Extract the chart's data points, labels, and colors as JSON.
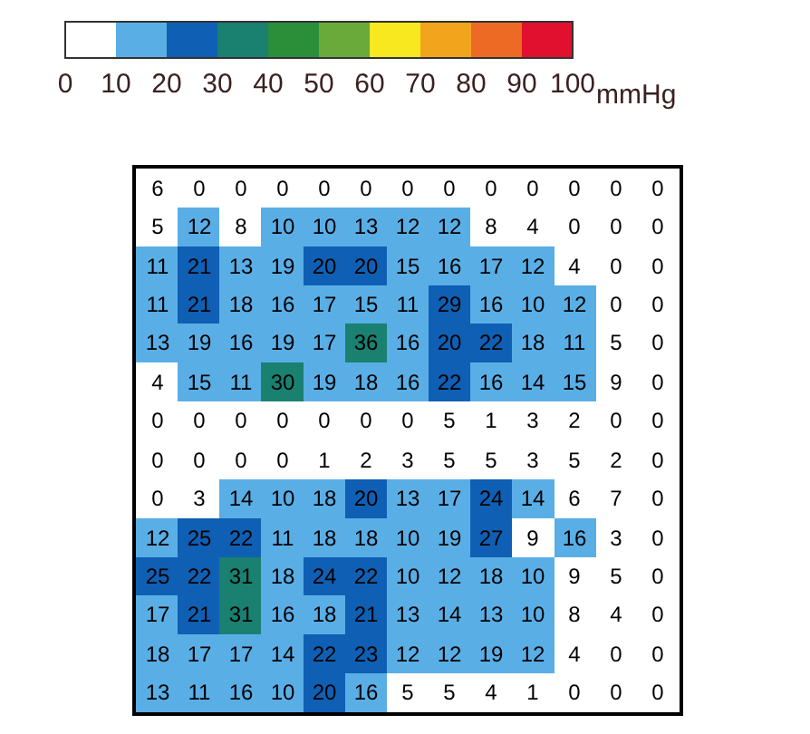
{
  "chart_data": {
    "type": "heatmap",
    "clabel": "mmHg",
    "categories": [
      null,
      null,
      null,
      null,
      null,
      null,
      null,
      null,
      null,
      null,
      null,
      null,
      null
    ],
    "y_categories": [
      null,
      null,
      null,
      null,
      null,
      null,
      null,
      null,
      null,
      null,
      null,
      null,
      null,
      null
    ],
    "cells": [
      [
        6,
        0,
        0,
        0,
        0,
        0,
        0,
        0,
        0,
        0,
        0,
        0,
        0
      ],
      [
        5,
        12,
        8,
        10,
        10,
        13,
        12,
        12,
        8,
        4,
        0,
        0,
        0
      ],
      [
        11,
        21,
        13,
        19,
        20,
        20,
        15,
        16,
        17,
        12,
        4,
        0,
        0
      ],
      [
        11,
        21,
        18,
        16,
        17,
        15,
        11,
        29,
        16,
        10,
        12,
        0,
        0
      ],
      [
        13,
        19,
        16,
        19,
        17,
        36,
        16,
        20,
        22,
        18,
        11,
        5,
        0
      ],
      [
        4,
        15,
        11,
        30,
        19,
        18,
        16,
        22,
        16,
        14,
        15,
        9,
        0
      ],
      [
        0,
        0,
        0,
        0,
        0,
        0,
        0,
        5,
        1,
        3,
        2,
        0,
        0
      ],
      [
        0,
        0,
        0,
        0,
        1,
        2,
        3,
        5,
        5,
        3,
        5,
        2,
        0
      ],
      [
        0,
        3,
        14,
        10,
        18,
        20,
        13,
        17,
        24,
        14,
        6,
        7,
        0
      ],
      [
        12,
        25,
        22,
        11,
        18,
        18,
        10,
        19,
        27,
        9,
        16,
        3,
        0
      ],
      [
        25,
        22,
        31,
        18,
        24,
        22,
        10,
        12,
        18,
        10,
        9,
        5,
        0
      ],
      [
        17,
        21,
        31,
        16,
        18,
        21,
        13,
        14,
        13,
        10,
        8,
        4,
        0
      ],
      [
        18,
        17,
        17,
        14,
        22,
        23,
        12,
        12,
        19,
        12,
        4,
        0,
        0
      ],
      [
        13,
        11,
        16,
        10,
        20,
        16,
        5,
        5,
        4,
        1,
        0,
        0,
        0
      ]
    ],
    "colors": [
      "#ffffff",
      "#5aaee6",
      "#0f5fb4",
      "#1a8070",
      "#2b8f3a",
      "#6aaa3a",
      "#f8e820",
      "#f2a51c",
      "#ec6a24",
      "#e0102e"
    ],
    "clim": [
      0,
      100
    ],
    "cticks": [
      0,
      10,
      20,
      30,
      40,
      50,
      60,
      70,
      80,
      90,
      100
    ],
    "data_labels": true
  }
}
